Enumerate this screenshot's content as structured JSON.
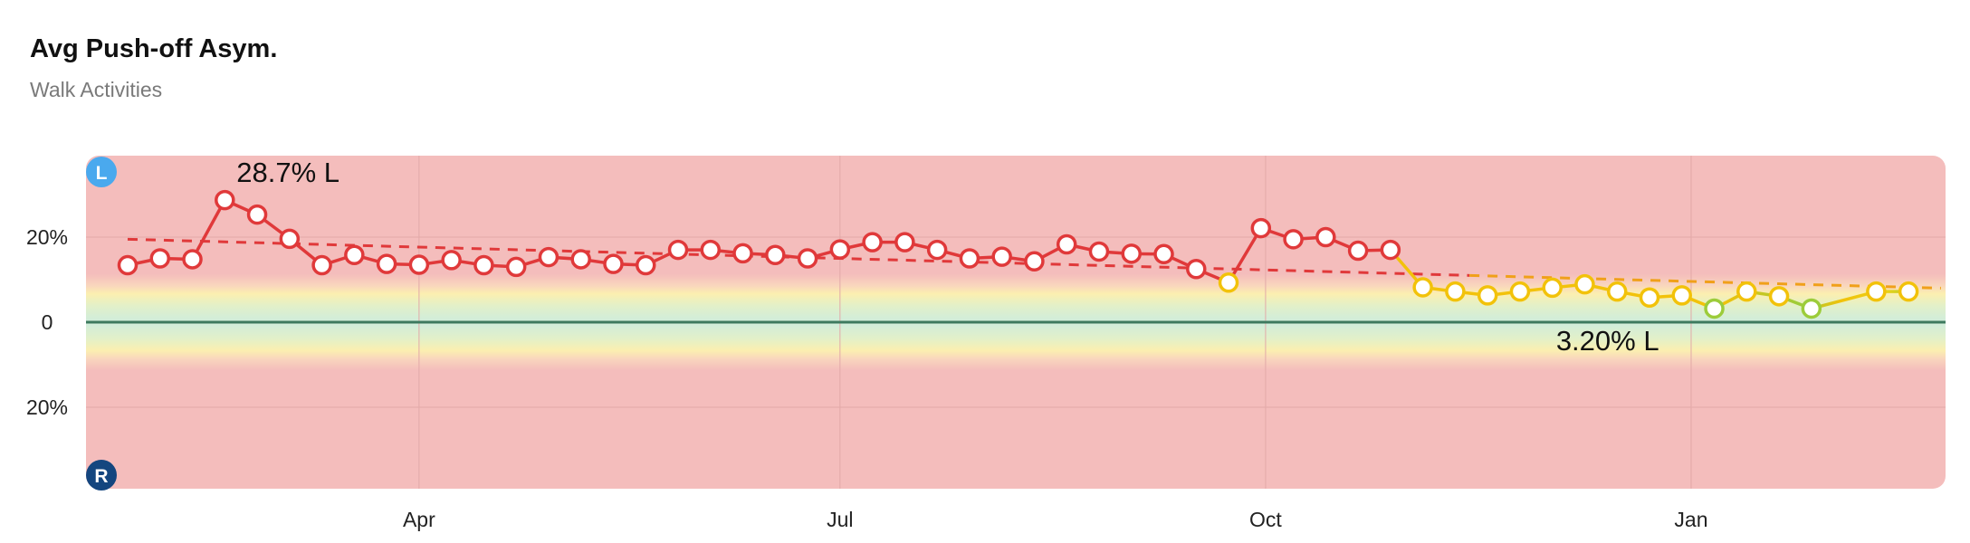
{
  "header": {
    "title": "Avg Push-off Asym.",
    "subtitle": "Walk Activities"
  },
  "chart_data": {
    "type": "line",
    "title": "Avg Push-off Asym.",
    "subtitle": "Walk Activities",
    "xlabel": "",
    "ylabel": "",
    "y_unit": "%",
    "y_scale_note": "positive = left, negative = right",
    "ylim": [
      -20,
      20
    ],
    "y_ticks": [
      {
        "value": 20,
        "label": "20%"
      },
      {
        "value": 0,
        "label": "0"
      },
      {
        "value": -20,
        "label": "20%"
      }
    ],
    "side_badges": {
      "top": "L",
      "bottom": "R"
    },
    "x_range": [
      "2024-01-20",
      "2025-02-25"
    ],
    "x_ticks": [
      {
        "date": "2024-04-01",
        "label": "Apr"
      },
      {
        "date": "2024-07-01",
        "label": "Jul"
      },
      {
        "date": "2024-10-01",
        "label": "Oct"
      },
      {
        "date": "2025-01-01",
        "label": "Jan"
      }
    ],
    "grid": true,
    "colors": {
      "red": "#e0393a",
      "orange": "#ef6a22",
      "yellow": "#f2c20a",
      "green": "#9ccc3a",
      "zero_line": "#3d7a5f",
      "bad_zone": "#f4bdbc",
      "badge_left": "#4aa9ee",
      "badge_right": "#14467f"
    },
    "series": [
      {
        "x": [
          "2024-01-29",
          "2024-02-05",
          "2024-02-12",
          "2024-02-19",
          "2024-02-26",
          "2024-03-04",
          "2024-03-11",
          "2024-03-18",
          "2024-03-25",
          "2024-04-01",
          "2024-04-08",
          "2024-04-15",
          "2024-04-22",
          "2024-04-29",
          "2024-05-06",
          "2024-05-13",
          "2024-05-20",
          "2024-05-27",
          "2024-06-03",
          "2024-06-10",
          "2024-06-17",
          "2024-06-24",
          "2024-07-01",
          "2024-07-08",
          "2024-07-15",
          "2024-07-22",
          "2024-07-29",
          "2024-08-05",
          "2024-08-12",
          "2024-08-19",
          "2024-08-26",
          "2024-09-02",
          "2024-09-09",
          "2024-09-16",
          "2024-09-23",
          "2024-09-30",
          "2024-10-07",
          "2024-10-14",
          "2024-10-21",
          "2024-10-28",
          "2024-11-04",
          "2024-11-11",
          "2024-11-18",
          "2024-11-25",
          "2024-12-02",
          "2024-12-09",
          "2024-12-16",
          "2024-12-23",
          "2024-12-30",
          "2025-01-06",
          "2025-01-13",
          "2025-01-20",
          "2025-01-27",
          "2025-02-10",
          "2025-02-17"
        ],
        "values": [
          13.4,
          15.0,
          14.8,
          28.7,
          25.3,
          19.6,
          13.4,
          15.8,
          13.7,
          13.5,
          14.6,
          13.4,
          13.0,
          15.3,
          14.8,
          13.7,
          13.4,
          17.0,
          17.0,
          16.2,
          15.8,
          15.0,
          17.1,
          18.8,
          18.8,
          17.0,
          15.0,
          15.4,
          14.3,
          18.3,
          16.6,
          16.1,
          16.0,
          12.5,
          9.3,
          22.1,
          19.5,
          20.0,
          16.8,
          17.0,
          8.2,
          7.2,
          6.3,
          7.2,
          8.1,
          8.9,
          7.2,
          5.8,
          6.3,
          3.2,
          7.2,
          6.1,
          3.2,
          7.2,
          7.2
        ]
      }
    ],
    "trend": {
      "start": {
        "x": "2024-01-29",
        "y": 19.5
      },
      "end": {
        "x": "2025-02-24",
        "y": 8.0
      }
    },
    "annotations": [
      {
        "label": "28.7% L",
        "point_index": 3
      },
      {
        "label": "3.20% L",
        "point_index": 52
      }
    ]
  }
}
